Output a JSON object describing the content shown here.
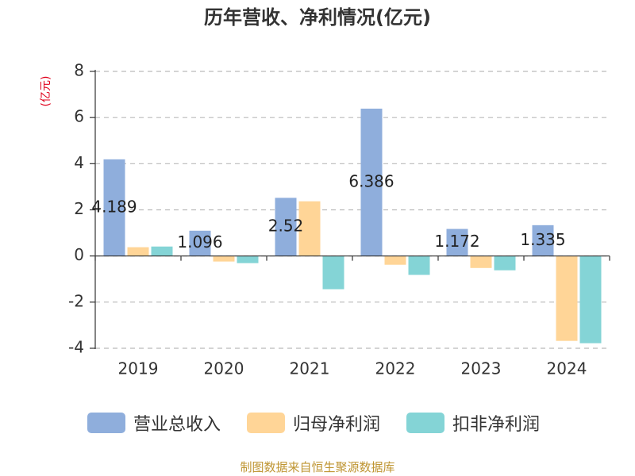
{
  "chart_data": {
    "type": "bar",
    "title": "历年营收、净利情况(亿元)",
    "ylabel": "(亿元)",
    "xlabel": "",
    "categories": [
      "2019",
      "2020",
      "2021",
      "2022",
      "2023",
      "2024"
    ],
    "ylim": [
      -4,
      8
    ],
    "yticks": [
      -4,
      -2,
      0,
      2,
      4,
      6,
      8
    ],
    "grid": true,
    "legend": "bottom",
    "series": [
      {
        "name": "营业总收入",
        "color": "#8FAEDC",
        "values": [
          4.189,
          1.096,
          2.52,
          6.386,
          1.172,
          1.335
        ],
        "data_labels": true
      },
      {
        "name": "归母净利润",
        "color": "#FFD597",
        "values": [
          0.38,
          -0.24,
          2.37,
          -0.38,
          -0.52,
          -3.68
        ],
        "data_labels": false
      },
      {
        "name": "扣非净利润",
        "color": "#84D4D6",
        "values": [
          0.41,
          -0.31,
          -1.44,
          -0.82,
          -0.62,
          -3.78
        ],
        "data_labels": false
      }
    ]
  },
  "footer": {
    "source": "制图数据来自恒生聚源数据库"
  },
  "colors": {
    "title": "#333333",
    "ylabel": "#E0001B",
    "footer": "#BF9532",
    "axis": "#333333",
    "gridline": "#BBBBBB"
  }
}
